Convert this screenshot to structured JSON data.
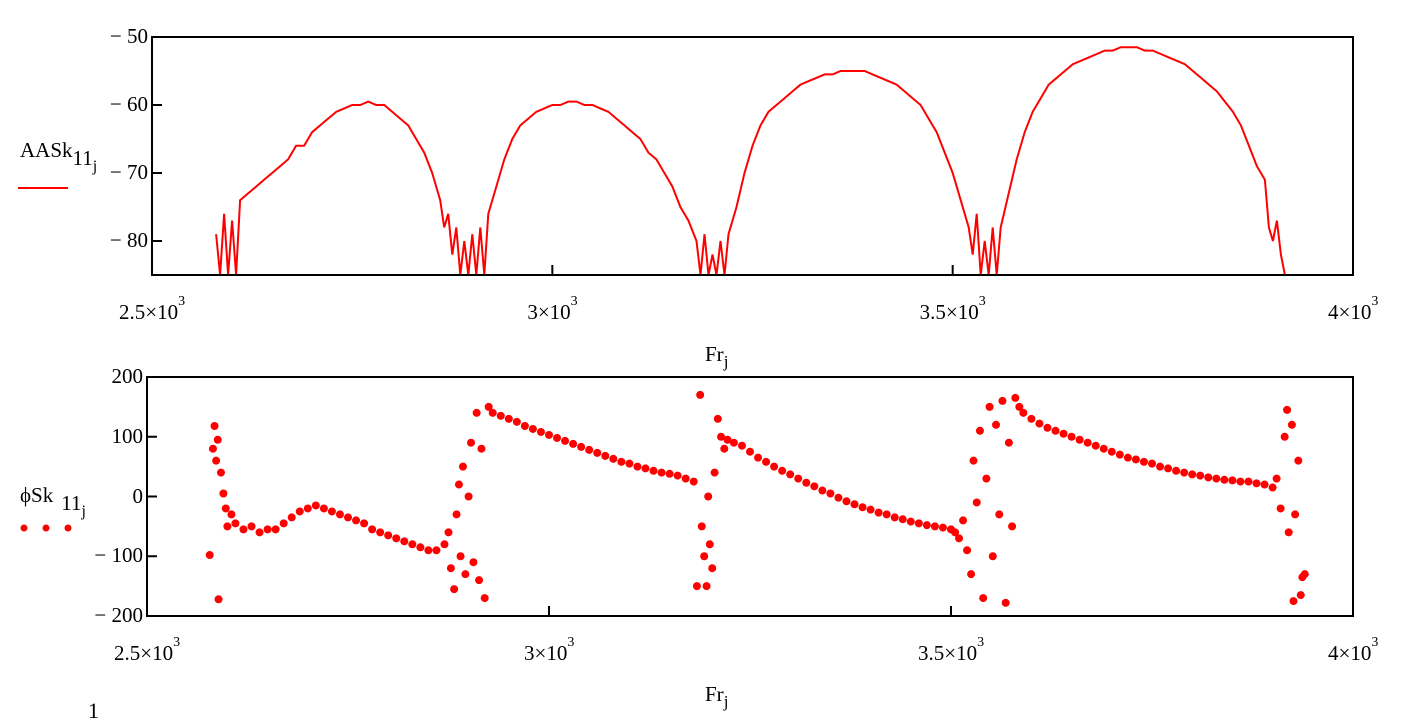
{
  "chart_data": [
    {
      "type": "line",
      "title": "",
      "legend": {
        "name": "AASk",
        "sub": "11",
        "subsub": "j",
        "placement": "left"
      },
      "xlabel": {
        "main": "Fr",
        "sub": "j"
      },
      "xlim": [
        2500,
        4000
      ],
      "ylim": [
        -85,
        -50
      ],
      "grid": false,
      "x_ticks": [
        {
          "value": 2500,
          "mant": "2.5",
          "exp": "3"
        },
        {
          "value": 3000,
          "mant": "3",
          "exp": "3"
        },
        {
          "value": 3500,
          "mant": "3.5",
          "exp": "3"
        },
        {
          "value": 4000,
          "mant": "4",
          "exp": "3"
        }
      ],
      "y_ticks": [
        {
          "value": -50,
          "label": "− 50"
        },
        {
          "value": -60,
          "label": "− 60"
        },
        {
          "value": -70,
          "label": "− 70"
        },
        {
          "value": -80,
          "label": "− 80"
        }
      ],
      "color": "#ff0000",
      "points": [
        [
          2580,
          -79
        ],
        [
          2585,
          -85
        ],
        [
          2590,
          -76
        ],
        [
          2595,
          -85
        ],
        [
          2600,
          -77
        ],
        [
          2605,
          -85
        ],
        [
          2610,
          -74
        ],
        [
          2620,
          -73
        ],
        [
          2630,
          -72
        ],
        [
          2640,
          -71
        ],
        [
          2650,
          -70
        ],
        [
          2660,
          -69
        ],
        [
          2670,
          -68
        ],
        [
          2680,
          -66
        ],
        [
          2690,
          -66
        ],
        [
          2700,
          -64
        ],
        [
          2710,
          -63
        ],
        [
          2720,
          -62
        ],
        [
          2730,
          -61
        ],
        [
          2740,
          -60.5
        ],
        [
          2750,
          -60
        ],
        [
          2760,
          -60
        ],
        [
          2770,
          -59.5
        ],
        [
          2780,
          -60
        ],
        [
          2790,
          -60
        ],
        [
          2800,
          -61
        ],
        [
          2810,
          -62
        ],
        [
          2820,
          -63
        ],
        [
          2830,
          -65
        ],
        [
          2840,
          -67
        ],
        [
          2850,
          -70
        ],
        [
          2860,
          -74
        ],
        [
          2865,
          -78
        ],
        [
          2870,
          -76
        ],
        [
          2875,
          -82
        ],
        [
          2880,
          -78
        ],
        [
          2885,
          -85
        ],
        [
          2890,
          -80
        ],
        [
          2895,
          -85
        ],
        [
          2900,
          -79
        ],
        [
          2905,
          -85
        ],
        [
          2910,
          -78
        ],
        [
          2915,
          -85
        ],
        [
          2920,
          -76
        ],
        [
          2930,
          -72
        ],
        [
          2940,
          -68
        ],
        [
          2950,
          -65
        ],
        [
          2960,
          -63
        ],
        [
          2970,
          -62
        ],
        [
          2980,
          -61
        ],
        [
          2990,
          -60.5
        ],
        [
          3000,
          -60
        ],
        [
          3010,
          -60
        ],
        [
          3020,
          -59.5
        ],
        [
          3030,
          -59.5
        ],
        [
          3040,
          -60
        ],
        [
          3050,
          -60
        ],
        [
          3060,
          -60.5
        ],
        [
          3070,
          -61
        ],
        [
          3080,
          -62
        ],
        [
          3090,
          -63
        ],
        [
          3100,
          -64
        ],
        [
          3110,
          -65
        ],
        [
          3120,
          -67
        ],
        [
          3130,
          -68
        ],
        [
          3140,
          -70
        ],
        [
          3150,
          -72
        ],
        [
          3160,
          -75
        ],
        [
          3170,
          -77
        ],
        [
          3180,
          -80
        ],
        [
          3185,
          -85
        ],
        [
          3190,
          -79
        ],
        [
          3195,
          -85
        ],
        [
          3200,
          -82
        ],
        [
          3205,
          -85
        ],
        [
          3210,
          -80
        ],
        [
          3215,
          -85
        ],
        [
          3220,
          -79
        ],
        [
          3230,
          -75
        ],
        [
          3240,
          -70
        ],
        [
          3250,
          -66
        ],
        [
          3260,
          -63
        ],
        [
          3270,
          -61
        ],
        [
          3280,
          -60
        ],
        [
          3290,
          -59
        ],
        [
          3300,
          -58
        ],
        [
          3310,
          -57
        ],
        [
          3320,
          -56.5
        ],
        [
          3330,
          -56
        ],
        [
          3340,
          -55.5
        ],
        [
          3350,
          -55.5
        ],
        [
          3360,
          -55
        ],
        [
          3370,
          -55
        ],
        [
          3380,
          -55
        ],
        [
          3390,
          -55
        ],
        [
          3400,
          -55.5
        ],
        [
          3410,
          -56
        ],
        [
          3420,
          -56.5
        ],
        [
          3430,
          -57
        ],
        [
          3440,
          -58
        ],
        [
          3450,
          -59
        ],
        [
          3460,
          -60
        ],
        [
          3470,
          -62
        ],
        [
          3480,
          -64
        ],
        [
          3490,
          -67
        ],
        [
          3500,
          -70
        ],
        [
          3510,
          -74
        ],
        [
          3520,
          -78
        ],
        [
          3525,
          -82
        ],
        [
          3530,
          -76
        ],
        [
          3535,
          -85
        ],
        [
          3540,
          -80
        ],
        [
          3545,
          -85
        ],
        [
          3550,
          -78
        ],
        [
          3555,
          -85
        ],
        [
          3560,
          -78
        ],
        [
          3570,
          -73
        ],
        [
          3580,
          -68
        ],
        [
          3590,
          -64
        ],
        [
          3600,
          -61
        ],
        [
          3610,
          -59
        ],
        [
          3620,
          -57
        ],
        [
          3630,
          -56
        ],
        [
          3640,
          -55
        ],
        [
          3650,
          -54
        ],
        [
          3660,
          -53.5
        ],
        [
          3670,
          -53
        ],
        [
          3680,
          -52.5
        ],
        [
          3690,
          -52
        ],
        [
          3700,
          -52
        ],
        [
          3710,
          -51.5
        ],
        [
          3720,
          -51.5
        ],
        [
          3730,
          -51.5
        ],
        [
          3740,
          -52
        ],
        [
          3750,
          -52
        ],
        [
          3760,
          -52.5
        ],
        [
          3770,
          -53
        ],
        [
          3780,
          -53.5
        ],
        [
          3790,
          -54
        ],
        [
          3800,
          -55
        ],
        [
          3810,
          -56
        ],
        [
          3820,
          -57
        ],
        [
          3830,
          -58
        ],
        [
          3840,
          -59.5
        ],
        [
          3850,
          -61
        ],
        [
          3860,
          -63
        ],
        [
          3870,
          -66
        ],
        [
          3880,
          -69
        ],
        [
          3890,
          -71
        ],
        [
          3895,
          -78
        ],
        [
          3900,
          -80
        ],
        [
          3905,
          -77
        ],
        [
          3910,
          -82
        ],
        [
          3915,
          -85
        ],
        [
          3920,
          -85
        ]
      ]
    },
    {
      "type": "scatter",
      "title": "",
      "legend": {
        "name": "ϕSk",
        "sub": "11",
        "subsub": "j",
        "placement": "left"
      },
      "xlabel": {
        "main": "Fr",
        "sub": "j"
      },
      "xlim": [
        2500,
        4000
      ],
      "ylim": [
        -200,
        200
      ],
      "grid": false,
      "x_ticks": [
        {
          "value": 2500,
          "mant": "2.5",
          "exp": "3"
        },
        {
          "value": 3000,
          "mant": "3",
          "exp": "3"
        },
        {
          "value": 3500,
          "mant": "3.5",
          "exp": "3"
        },
        {
          "value": 4000,
          "mant": "4",
          "exp": "3"
        }
      ],
      "y_ticks": [
        {
          "value": 200,
          "label": "200"
        },
        {
          "value": 100,
          "label": "100"
        },
        {
          "value": 0,
          "label": "0"
        },
        {
          "value": -100,
          "label": "− 100"
        },
        {
          "value": -200,
          "label": "− 200"
        }
      ],
      "color": "#ff0000",
      "points": [
        [
          2578,
          -98
        ],
        [
          2582,
          80
        ],
        [
          2584,
          118
        ],
        [
          2586,
          60
        ],
        [
          2588,
          95
        ],
        [
          2589,
          -172
        ],
        [
          2592,
          40
        ],
        [
          2595,
          5
        ],
        [
          2598,
          -20
        ],
        [
          2600,
          -50
        ],
        [
          2605,
          -30
        ],
        [
          2610,
          -45
        ],
        [
          2620,
          -55
        ],
        [
          2630,
          -50
        ],
        [
          2640,
          -60
        ],
        [
          2650,
          -55
        ],
        [
          2660,
          -55
        ],
        [
          2670,
          -45
        ],
        [
          2680,
          -35
        ],
        [
          2690,
          -25
        ],
        [
          2700,
          -20
        ],
        [
          2710,
          -15
        ],
        [
          2720,
          -20
        ],
        [
          2730,
          -25
        ],
        [
          2740,
          -30
        ],
        [
          2750,
          -35
        ],
        [
          2760,
          -40
        ],
        [
          2770,
          -45
        ],
        [
          2780,
          -55
        ],
        [
          2790,
          -60
        ],
        [
          2800,
          -65
        ],
        [
          2810,
          -70
        ],
        [
          2820,
          -75
        ],
        [
          2830,
          -80
        ],
        [
          2840,
          -85
        ],
        [
          2850,
          -90
        ],
        [
          2860,
          -90
        ],
        [
          2870,
          -80
        ],
        [
          2875,
          -60
        ],
        [
          2878,
          -120
        ],
        [
          2882,
          -155
        ],
        [
          2885,
          -30
        ],
        [
          2888,
          20
        ],
        [
          2890,
          -100
        ],
        [
          2893,
          50
        ],
        [
          2896,
          -130
        ],
        [
          2900,
          0
        ],
        [
          2903,
          90
        ],
        [
          2906,
          -110
        ],
        [
          2910,
          140
        ],
        [
          2913,
          -140
        ],
        [
          2916,
          80
        ],
        [
          2920,
          -170
        ],
        [
          2925,
          150
        ],
        [
          2930,
          140
        ],
        [
          2940,
          135
        ],
        [
          2950,
          130
        ],
        [
          2960,
          125
        ],
        [
          2970,
          118
        ],
        [
          2980,
          113
        ],
        [
          2990,
          108
        ],
        [
          3000,
          103
        ],
        [
          3010,
          98
        ],
        [
          3020,
          93
        ],
        [
          3030,
          88
        ],
        [
          3040,
          83
        ],
        [
          3050,
          78
        ],
        [
          3060,
          73
        ],
        [
          3070,
          68
        ],
        [
          3080,
          63
        ],
        [
          3090,
          58
        ],
        [
          3100,
          55
        ],
        [
          3110,
          50
        ],
        [
          3120,
          47
        ],
        [
          3130,
          43
        ],
        [
          3140,
          40
        ],
        [
          3150,
          38
        ],
        [
          3160,
          35
        ],
        [
          3170,
          30
        ],
        [
          3180,
          25
        ],
        [
          3184,
          -150
        ],
        [
          3188,
          170
        ],
        [
          3190,
          -50
        ],
        [
          3193,
          -100
        ],
        [
          3196,
          -150
        ],
        [
          3198,
          0
        ],
        [
          3200,
          -80
        ],
        [
          3203,
          -120
        ],
        [
          3206,
          40
        ],
        [
          3210,
          130
        ],
        [
          3214,
          100
        ],
        [
          3218,
          80
        ],
        [
          3222,
          95
        ],
        [
          3230,
          90
        ],
        [
          3240,
          85
        ],
        [
          3250,
          75
        ],
        [
          3260,
          65
        ],
        [
          3270,
          58
        ],
        [
          3280,
          50
        ],
        [
          3290,
          43
        ],
        [
          3300,
          37
        ],
        [
          3310,
          30
        ],
        [
          3320,
          23
        ],
        [
          3330,
          17
        ],
        [
          3340,
          10
        ],
        [
          3350,
          5
        ],
        [
          3360,
          -2
        ],
        [
          3370,
          -8
        ],
        [
          3380,
          -13
        ],
        [
          3390,
          -18
        ],
        [
          3400,
          -22
        ],
        [
          3410,
          -27
        ],
        [
          3420,
          -30
        ],
        [
          3430,
          -35
        ],
        [
          3440,
          -38
        ],
        [
          3450,
          -42
        ],
        [
          3460,
          -45
        ],
        [
          3470,
          -48
        ],
        [
          3480,
          -50
        ],
        [
          3490,
          -52
        ],
        [
          3500,
          -55
        ],
        [
          3505,
          -60
        ],
        [
          3510,
          -70
        ],
        [
          3515,
          -40
        ],
        [
          3520,
          -90
        ],
        [
          3525,
          -130
        ],
        [
          3528,
          60
        ],
        [
          3532,
          -10
        ],
        [
          3536,
          110
        ],
        [
          3540,
          -170
        ],
        [
          3544,
          30
        ],
        [
          3548,
          150
        ],
        [
          3552,
          -100
        ],
        [
          3556,
          120
        ],
        [
          3560,
          -30
        ],
        [
          3564,
          160
        ],
        [
          3568,
          -178
        ],
        [
          3572,
          90
        ],
        [
          3576,
          -50
        ],
        [
          3580,
          165
        ],
        [
          3585,
          150
        ],
        [
          3590,
          140
        ],
        [
          3600,
          130
        ],
        [
          3610,
          122
        ],
        [
          3620,
          115
        ],
        [
          3630,
          110
        ],
        [
          3640,
          105
        ],
        [
          3650,
          100
        ],
        [
          3660,
          95
        ],
        [
          3670,
          90
        ],
        [
          3680,
          85
        ],
        [
          3690,
          80
        ],
        [
          3700,
          75
        ],
        [
          3710,
          70
        ],
        [
          3720,
          65
        ],
        [
          3730,
          62
        ],
        [
          3740,
          58
        ],
        [
          3750,
          55
        ],
        [
          3760,
          50
        ],
        [
          3770,
          47
        ],
        [
          3780,
          43
        ],
        [
          3790,
          40
        ],
        [
          3800,
          37
        ],
        [
          3810,
          35
        ],
        [
          3820,
          32
        ],
        [
          3830,
          30
        ],
        [
          3840,
          28
        ],
        [
          3850,
          27
        ],
        [
          3860,
          25
        ],
        [
          3870,
          25
        ],
        [
          3880,
          22
        ],
        [
          3890,
          20
        ],
        [
          3900,
          15
        ],
        [
          3905,
          30
        ],
        [
          3910,
          -20
        ],
        [
          3915,
          100
        ],
        [
          3918,
          145
        ],
        [
          3920,
          -60
        ],
        [
          3924,
          120
        ],
        [
          3926,
          -175
        ],
        [
          3928,
          -30
        ],
        [
          3932,
          60
        ],
        [
          3935,
          -165
        ],
        [
          3937,
          -135
        ],
        [
          3940,
          -130
        ]
      ]
    }
  ],
  "footer_fragment": "1"
}
